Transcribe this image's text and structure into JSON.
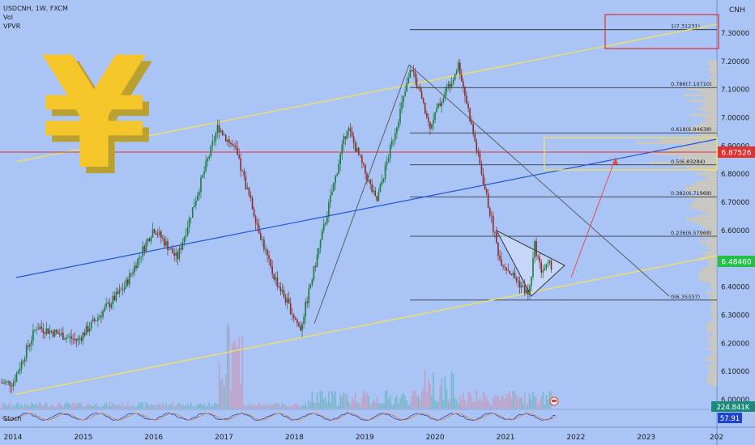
{
  "header": {
    "symbol": "USDCNH, 1W, FXCM",
    "indicator_1": "Vol",
    "indicator_2": "VPVR"
  },
  "currency_label": "CNH",
  "yen_symbol": "¥",
  "stoch_label": "Stoch",
  "colors": {
    "background": "#a9c4f5",
    "up_candle": "#1a7a3a",
    "down_candle": "#8a2a2a",
    "yellow_line": "#f5e15a",
    "blue_line": "#2255dd",
    "red_line": "#e03030",
    "fib_line": "#222222",
    "vpvr": "#d9c9a6"
  },
  "price_badges": {
    "red": "6.87526",
    "green": "6.48460",
    "volume": "224.841K",
    "stoch": "57.91"
  },
  "chart_data": {
    "type": "candlestick",
    "symbol": "USDCNH",
    "interval": "1W",
    "y_ticks": [
      "7.30000",
      "7.20000",
      "7.10000",
      "7.00000",
      "6.90000",
      "6.80000",
      "6.70000",
      "6.60000",
      "6.50000",
      "6.40000",
      "6.30000",
      "6.20000",
      "6.10000",
      "6.00000"
    ],
    "x_ticks": [
      "2014",
      "2015",
      "2016",
      "2017",
      "2018",
      "2019",
      "2020",
      "2021",
      "2022",
      "2023",
      "202"
    ],
    "ylim": [
      5.97,
      7.39
    ],
    "key_points": [
      {
        "date": "2014-01",
        "price": 6.06
      },
      {
        "date": "2014-05",
        "price": 6.26
      },
      {
        "date": "2014-12",
        "price": 6.21
      },
      {
        "date": "2015-08",
        "price": 6.4
      },
      {
        "date": "2016-01",
        "price": 6.61
      },
      {
        "date": "2016-05",
        "price": 6.5
      },
      {
        "date": "2016-12",
        "price": 6.97
      },
      {
        "date": "2017-03",
        "price": 6.88
      },
      {
        "date": "2017-09",
        "price": 6.46
      },
      {
        "date": "2018-02",
        "price": 6.25
      },
      {
        "date": "2018-10",
        "price": 6.97
      },
      {
        "date": "2019-03",
        "price": 6.7
      },
      {
        "date": "2019-09",
        "price": 7.18
      },
      {
        "date": "2019-12",
        "price": 6.97
      },
      {
        "date": "2020-05",
        "price": 7.19
      },
      {
        "date": "2020-12",
        "price": 6.5
      },
      {
        "date": "2021-05",
        "price": 6.37
      },
      {
        "date": "2021-06",
        "price": 6.55
      },
      {
        "date": "2021-07",
        "price": 6.46
      },
      {
        "date": "2021-09",
        "price": 6.48
      }
    ],
    "fib_levels": [
      {
        "label": "1(7.31231)",
        "price": 7.31231
      },
      {
        "label": "0.786(7.10710)",
        "price": 7.1071
      },
      {
        "label": "0.618(6.94638)",
        "price": 6.94638
      },
      {
        "label": "0.5(6.83284)",
        "price": 6.83284
      },
      {
        "label": "0.382(6.71968)",
        "price": 6.71968
      },
      {
        "label": "0.236(6.57968)",
        "price": 6.57968
      },
      {
        "label": "0(6.35337)",
        "price": 6.35337
      }
    ],
    "horizontal_line_price": 6.87526,
    "last_price": 6.4846
  }
}
